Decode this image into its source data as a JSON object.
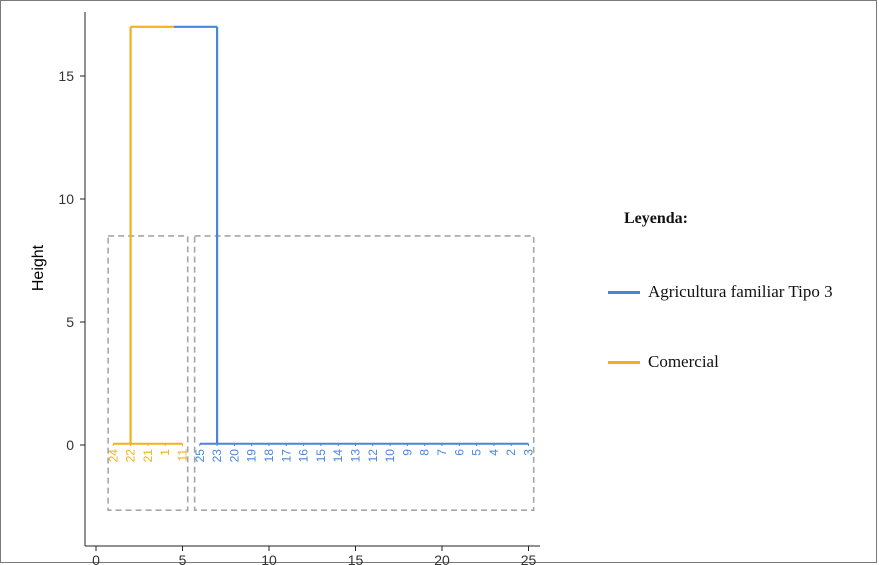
{
  "chart_data": {
    "type": "dendrogram",
    "ylabel": "Height",
    "xlim": [
      -0.5,
      25.5
    ],
    "ylim": [
      -3.3,
      17.4
    ],
    "x_ticks": [
      0,
      5,
      10,
      15,
      20,
      25
    ],
    "y_ticks": [
      0,
      5,
      10,
      15
    ],
    "grid": false,
    "legend_position": "right",
    "legend": {
      "title": "Leyenda:",
      "entries": [
        {
          "label": "Agricultura familiar Tipo 3",
          "color": "#4a86d8"
        },
        {
          "label": "Comercial",
          "color": "#f2b01e"
        }
      ]
    },
    "clusters": [
      {
        "name": "Comercial",
        "color": "#f2b01e",
        "leaves": [
          "24",
          "22",
          "21",
          "1",
          "11"
        ],
        "x_range": [
          1,
          5
        ],
        "merge_height": 0.05,
        "stem_x": 2,
        "box": {
          "x": [
            0.7,
            5.3
          ],
          "y": [
            -2.65,
            8.5
          ]
        }
      },
      {
        "name": "Agricultura familiar Tipo 3",
        "color": "#4a86d8",
        "leaves": [
          "25",
          "23",
          "20",
          "19",
          "18",
          "17",
          "16",
          "15",
          "14",
          "13",
          "12",
          "10",
          "9",
          "8",
          "7",
          "6",
          "5",
          "4",
          "2",
          "3"
        ],
        "x_range": [
          6,
          25
        ],
        "merge_height": 0.05,
        "stem_x": 7,
        "box": {
          "x": [
            5.7,
            25.3
          ],
          "y": [
            -2.65,
            8.5
          ]
        }
      }
    ],
    "root": {
      "height": 17,
      "left_x": 2,
      "right_x": 7,
      "split_x": 4.5
    }
  }
}
